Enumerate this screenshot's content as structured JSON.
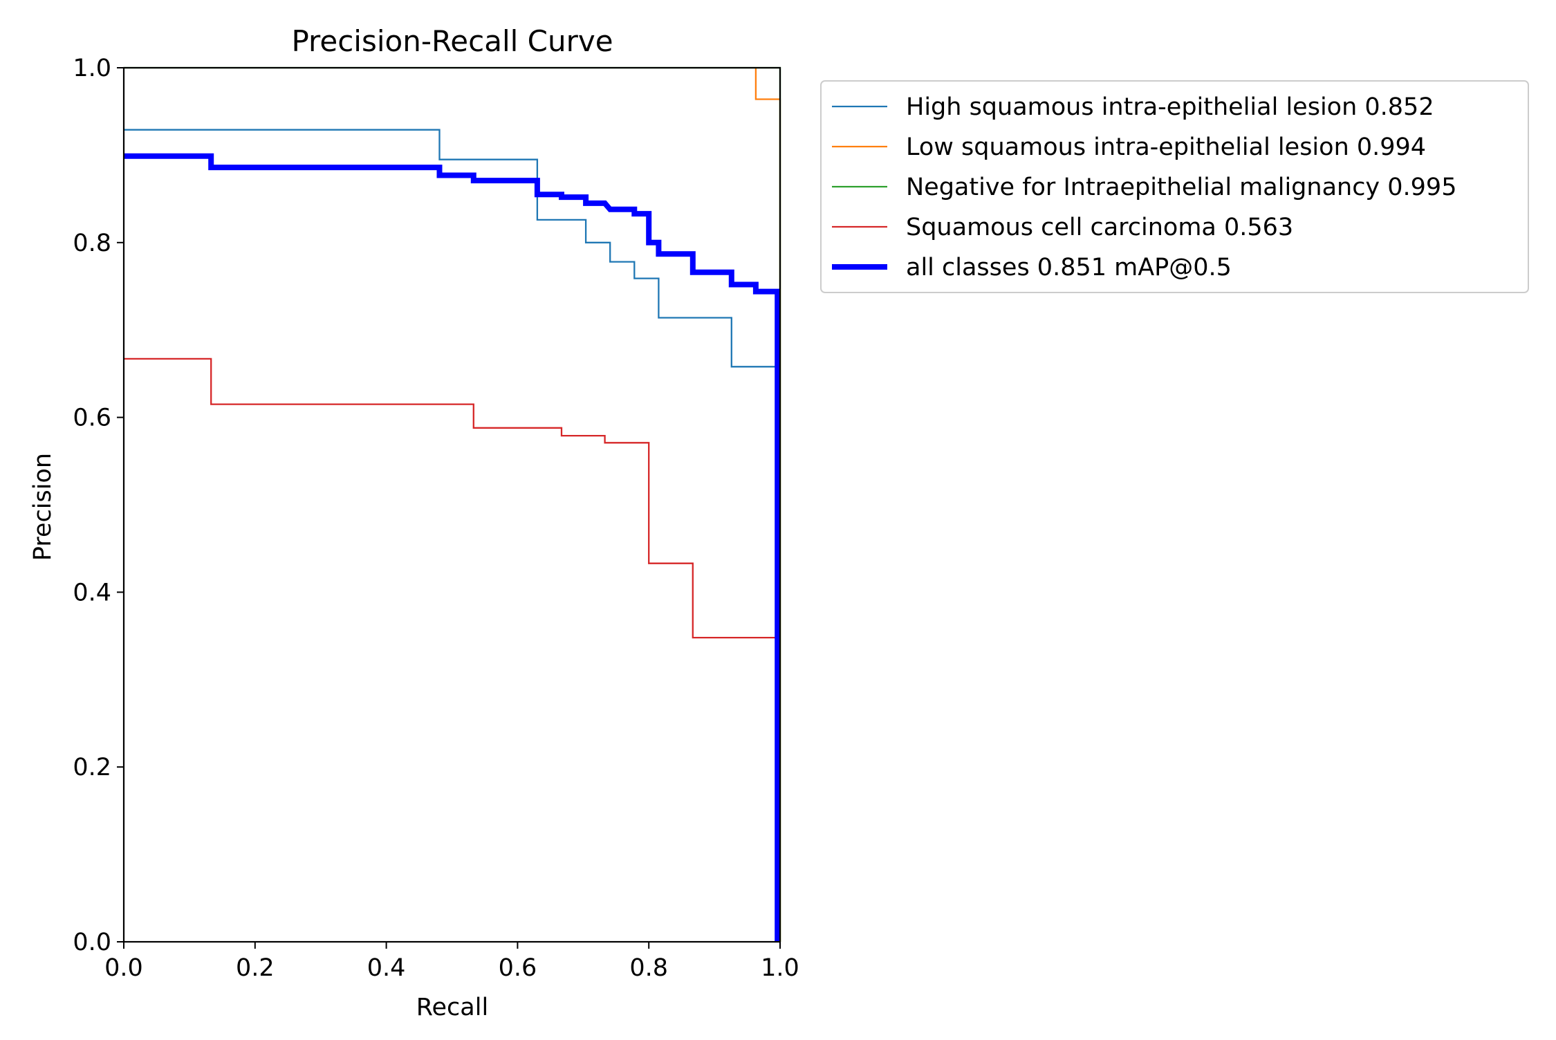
{
  "chart_data": {
    "type": "line",
    "title": "Precision-Recall Curve",
    "xlabel": "Recall",
    "ylabel": "Precision",
    "xlim": [
      0.0,
      1.0
    ],
    "ylim": [
      0.0,
      1.0
    ],
    "xticks": [
      0.0,
      0.2,
      0.4,
      0.6,
      0.8,
      1.0
    ],
    "yticks": [
      0.0,
      0.2,
      0.4,
      0.6,
      0.8,
      1.0
    ],
    "xtick_labels": [
      "0.0",
      "0.2",
      "0.4",
      "0.6",
      "0.8",
      "1.0"
    ],
    "ytick_labels": [
      "0.0",
      "0.2",
      "0.4",
      "0.6",
      "0.8",
      "1.0"
    ],
    "grid": false,
    "legend_position": "outside-top-right",
    "series": [
      {
        "name": "High squamous intra-epithelial lesion 0.852",
        "color": "#1f77b4",
        "width": "normal",
        "x": [
          0.0,
          0.481,
          0.481,
          0.63,
          0.63,
          0.704,
          0.704,
          0.741,
          0.741,
          0.778,
          0.778,
          0.815,
          0.815,
          0.926,
          0.926,
          0.996,
          0.996
        ],
        "y": [
          0.929,
          0.929,
          0.895,
          0.895,
          0.826,
          0.826,
          0.8,
          0.8,
          0.778,
          0.778,
          0.759,
          0.759,
          0.714,
          0.714,
          0.658,
          0.658,
          0.0
        ]
      },
      {
        "name": "Low squamous intra-epithelial lesion 0.994",
        "color": "#ff7f0e",
        "width": "normal",
        "x": [
          0.963,
          0.963,
          1.0,
          1.0
        ],
        "y": [
          1.0,
          0.964,
          0.964,
          0.0
        ]
      },
      {
        "name": "Negative for Intraepithelial malignancy 0.995",
        "color": "#2ca02c",
        "width": "normal",
        "x": [
          0.0,
          1.0,
          1.0
        ],
        "y": [
          1.0,
          1.0,
          0.0
        ]
      },
      {
        "name": "Squamous cell carcinoma 0.563",
        "color": "#d62728",
        "width": "normal",
        "x": [
          0.0,
          0.133,
          0.133,
          0.533,
          0.533,
          0.667,
          0.667,
          0.733,
          0.733,
          0.8,
          0.8,
          0.867,
          0.867,
          0.996,
          0.996
        ],
        "y": [
          0.667,
          0.667,
          0.615,
          0.615,
          0.588,
          0.588,
          0.579,
          0.579,
          0.571,
          0.571,
          0.433,
          0.433,
          0.348,
          0.348,
          0.0
        ]
      },
      {
        "name": "all classes 0.851 mAP@0.5",
        "color": "#0000ff",
        "width": "thick",
        "x": [
          0.0,
          0.133,
          0.133,
          0.481,
          0.481,
          0.533,
          0.533,
          0.63,
          0.63,
          0.667,
          0.667,
          0.704,
          0.704,
          0.733,
          0.741,
          0.741,
          0.778,
          0.778,
          0.8,
          0.8,
          0.815,
          0.815,
          0.867,
          0.867,
          0.926,
          0.926,
          0.963,
          0.963,
          0.996,
          0.996
        ],
        "y": [
          0.899,
          0.899,
          0.886,
          0.886,
          0.877,
          0.877,
          0.871,
          0.871,
          0.855,
          0.855,
          0.852,
          0.852,
          0.845,
          0.845,
          0.838,
          0.838,
          0.838,
          0.833,
          0.833,
          0.8,
          0.8,
          0.787,
          0.787,
          0.766,
          0.766,
          0.752,
          0.752,
          0.744,
          0.744,
          0.0
        ]
      }
    ]
  }
}
